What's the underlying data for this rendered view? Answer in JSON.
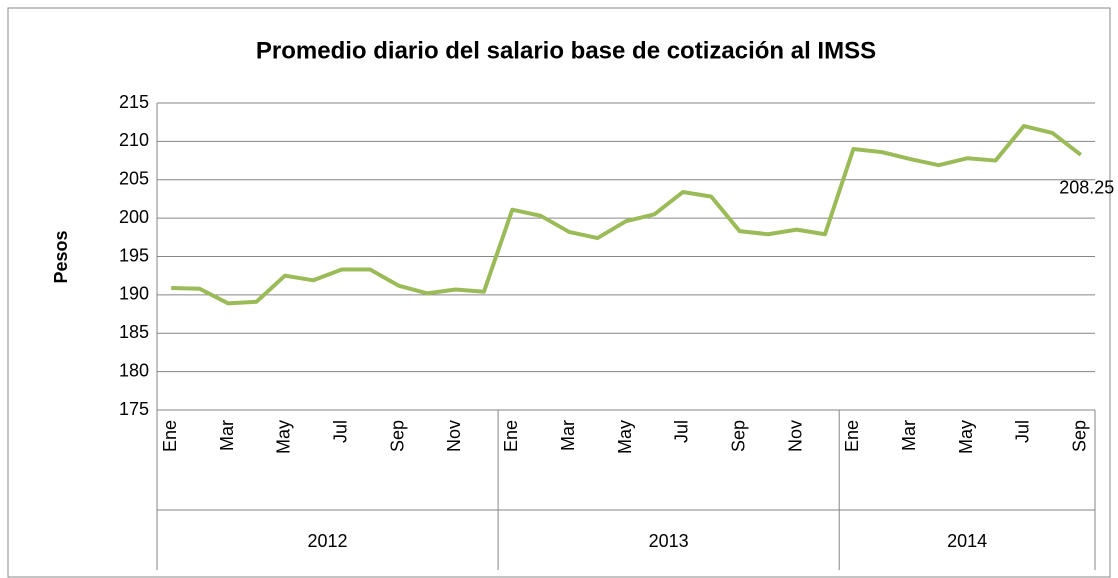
{
  "chart_data": {
    "type": "line",
    "title": "Promedio diario del salario base de cotización al IMSS",
    "y_label": "Pesos",
    "categories": [
      "Ene",
      null,
      "Mar",
      null,
      "May",
      null,
      "Jul",
      null,
      "Sep",
      null,
      "Nov",
      null,
      "Ene",
      null,
      "Mar",
      null,
      "May",
      null,
      "Jul",
      null,
      "Sep",
      null,
      "Nov",
      null,
      "Ene",
      null,
      "Mar",
      null,
      "May",
      null,
      "Jul",
      null,
      "Sep"
    ],
    "year_groups": [
      "2012",
      "2013",
      "2014"
    ],
    "series": [
      {
        "name": "Promedio diario",
        "color": "#9bbb59",
        "values": [
          190.9,
          190.8,
          188.9,
          189.1,
          192.5,
          191.9,
          193.3,
          193.3,
          191.2,
          190.2,
          190.7,
          190.4,
          201.1,
          200.3,
          198.2,
          197.4,
          199.6,
          200.5,
          203.4,
          202.8,
          198.3,
          197.9,
          198.5,
          197.9,
          209.0,
          208.6,
          207.7,
          206.9,
          207.8,
          207.5,
          212.0,
          211.1,
          208.25
        ]
      }
    ],
    "ylim": [
      175,
      215
    ],
    "yticks": [
      175,
      180,
      185,
      190,
      195,
      200,
      205,
      210,
      215
    ],
    "grid": true,
    "label_last": true
  }
}
